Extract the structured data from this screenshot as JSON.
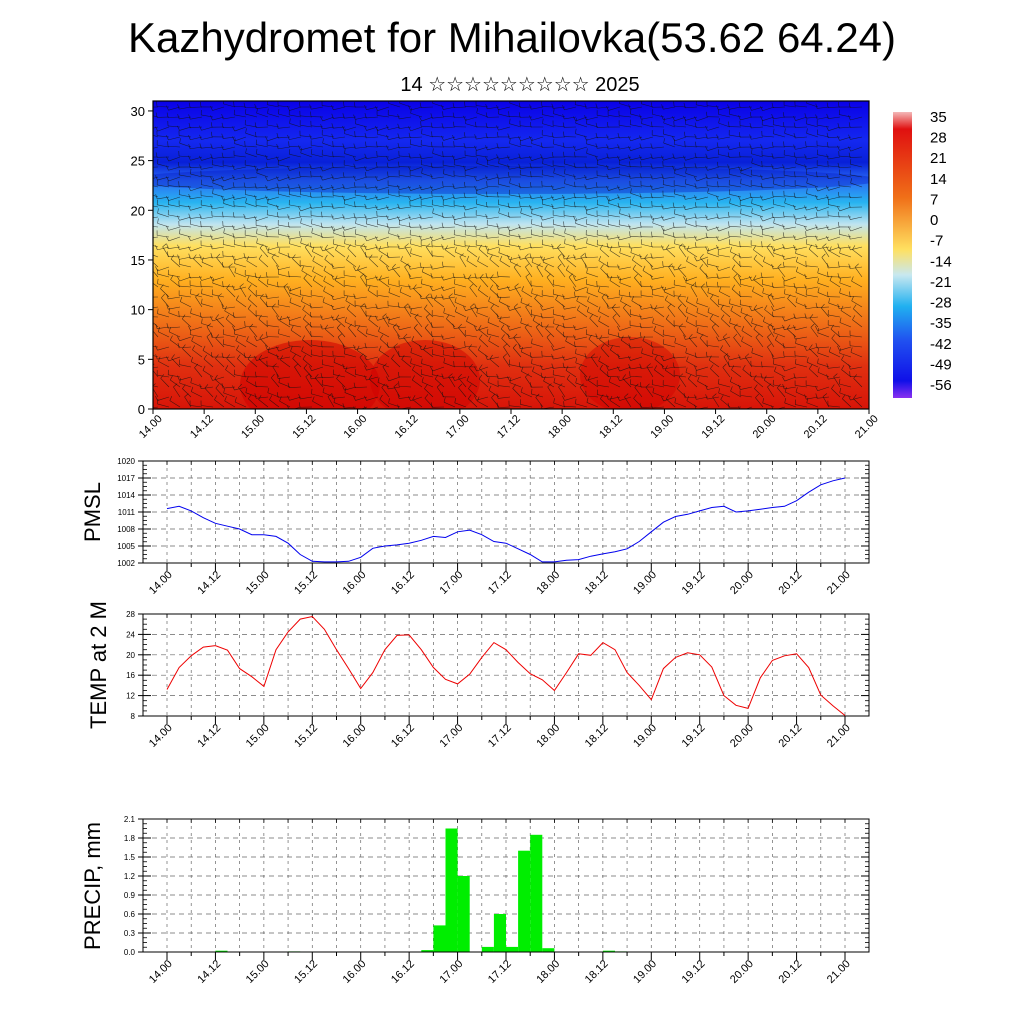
{
  "title": "Kazhydromet for Mihailovka(53.62 64.24)",
  "subtitle": "14 ☆☆☆☆☆☆☆☆☆ 2025",
  "time_labels": [
    "14.00",
    "14.12",
    "15.00",
    "15.12",
    "16.00",
    "16.12",
    "17.00",
    "17.12",
    "18.00",
    "18.12",
    "19.00",
    "19.12",
    "20.00",
    "20.12",
    "21.00"
  ],
  "chart_data": [
    {
      "type": "heatmap",
      "title": "",
      "xlabel": "",
      "ylabel": "",
      "x_ticks": [
        "14.00",
        "14.12",
        "15.00",
        "15.12",
        "16.00",
        "16.12",
        "17.00",
        "17.12",
        "18.00",
        "18.12",
        "19.00",
        "19.12",
        "20.00",
        "20.12",
        "21.00"
      ],
      "y_ticks": [
        "0",
        "5",
        "10",
        "15",
        "20",
        "25",
        "30"
      ],
      "ylim": [
        0,
        31
      ],
      "colorbar_labels": [
        "35",
        "28",
        "21",
        "14",
        "7",
        "0",
        "-7",
        "-14",
        "-21",
        "-28",
        "-35",
        "-42",
        "-49",
        "-56"
      ],
      "colorbar_range": [
        -63,
        42
      ],
      "overlay": "wind barbs",
      "colors": {
        "hot": "#e00000",
        "warm": "#ffd040",
        "cold": "#40b0ff",
        "coldest": "#1010e0"
      }
    },
    {
      "type": "line",
      "ylabel": "PMSL",
      "ylim": [
        1002,
        1020
      ],
      "y_ticks": [
        "1002",
        "1005",
        "1008",
        "1011",
        "1014",
        "1017",
        "1020"
      ],
      "x_ticks": [
        "14.00",
        "14.12",
        "15.00",
        "15.12",
        "16.00",
        "16.12",
        "17.00",
        "17.12",
        "18.00",
        "18.12",
        "19.00",
        "19.12",
        "20.00",
        "20.12",
        "21.00"
      ],
      "color": "#0000ee",
      "x": [
        0,
        3,
        6,
        9,
        12,
        15,
        18,
        21,
        24,
        27,
        30,
        33,
        36,
        39,
        42,
        45,
        48,
        51,
        54,
        57,
        60,
        63,
        66,
        69,
        72,
        75,
        78,
        81,
        84,
        87,
        90,
        93,
        96,
        99,
        102,
        105,
        108,
        111,
        114,
        117,
        120,
        123,
        126,
        129,
        132,
        135,
        138,
        141,
        144,
        147,
        150,
        153,
        156,
        159,
        162,
        165,
        168
      ],
      "values": [
        1011.6,
        1012.0,
        1011.2,
        1010.0,
        1009.0,
        1008.5,
        1008.0,
        1007.0,
        1007.0,
        1006.7,
        1005.5,
        1003.5,
        1002.3,
        1002.2,
        1002.2,
        1002.3,
        1003.0,
        1004.6,
        1005.0,
        1005.2,
        1005.5,
        1006.0,
        1006.7,
        1006.5,
        1007.5,
        1007.8,
        1007.0,
        1005.8,
        1005.5,
        1004.5,
        1003.5,
        1002.2,
        1002.2,
        1002.5,
        1002.6,
        1003.2,
        1003.6,
        1004.0,
        1004.5,
        1005.8,
        1007.5,
        1009.2,
        1010.2,
        1010.6,
        1011.2,
        1011.8,
        1012.0,
        1011.0,
        1011.2,
        1011.5,
        1011.8,
        1012.0,
        1013.0,
        1014.5,
        1015.8,
        1016.5,
        1017.0
      ]
    },
    {
      "type": "line",
      "ylabel": "TEMP at 2 M",
      "ylim": [
        8,
        28
      ],
      "y_ticks": [
        "8",
        "12",
        "16",
        "20",
        "24",
        "28"
      ],
      "x_ticks": [
        "14.00",
        "14.12",
        "15.00",
        "15.12",
        "16.00",
        "16.12",
        "17.00",
        "17.12",
        "18.00",
        "18.12",
        "19.00",
        "19.12",
        "20.00",
        "20.12",
        "21.00"
      ],
      "color": "#ee0000",
      "x": [
        0,
        3,
        6,
        9,
        12,
        15,
        18,
        21,
        24,
        27,
        30,
        33,
        36,
        39,
        42,
        45,
        48,
        51,
        54,
        57,
        60,
        63,
        66,
        69,
        72,
        75,
        78,
        81,
        84,
        87,
        90,
        93,
        96,
        99,
        102,
        105,
        108,
        111,
        114,
        117,
        120,
        123,
        126,
        129,
        132,
        135,
        138,
        141,
        144,
        147,
        150,
        153,
        156,
        159,
        162,
        165,
        168
      ],
      "values": [
        13.2,
        17.5,
        19.8,
        21.5,
        21.8,
        20.9,
        17.3,
        15.7,
        13.8,
        21.0,
        24.5,
        27.0,
        27.5,
        25.0,
        21.0,
        17.3,
        13.4,
        16.5,
        21.0,
        23.8,
        23.9,
        21.0,
        17.5,
        15.2,
        14.3,
        16.2,
        19.5,
        22.4,
        21.0,
        18.5,
        16.3,
        15.1,
        13.0,
        16.5,
        20.2,
        19.9,
        22.4,
        21.0,
        16.5,
        14.0,
        11.2,
        17.3,
        19.5,
        20.4,
        20.0,
        17.6,
        12.0,
        10.1,
        9.5,
        15.5,
        18.9,
        19.8,
        20.2,
        17.5,
        12.1,
        10.0,
        8.1
      ]
    },
    {
      "type": "bar",
      "ylabel": "PRECIP, mm",
      "ylim": [
        0,
        2.1
      ],
      "y_ticks": [
        "0.0",
        "0.3",
        "0.6",
        "0.9",
        "1.2",
        "1.5",
        "1.8",
        "2.1"
      ],
      "x_ticks": [
        "14.00",
        "14.12",
        "15.00",
        "15.12",
        "16.00",
        "16.12",
        "17.00",
        "17.12",
        "18.00",
        "18.12",
        "19.00",
        "19.12",
        "20.00",
        "20.12",
        "21.00"
      ],
      "color": "#00ee00",
      "x": [
        12,
        30,
        63,
        66,
        69,
        72,
        75,
        78,
        81,
        84,
        87,
        90,
        93,
        96,
        108,
        111
      ],
      "values": [
        0.02,
        0.01,
        0.03,
        0.42,
        1.95,
        1.2,
        0.0,
        0.08,
        0.6,
        0.08,
        1.6,
        1.85,
        0.06,
        0.0,
        0.02,
        0.01
      ]
    }
  ]
}
